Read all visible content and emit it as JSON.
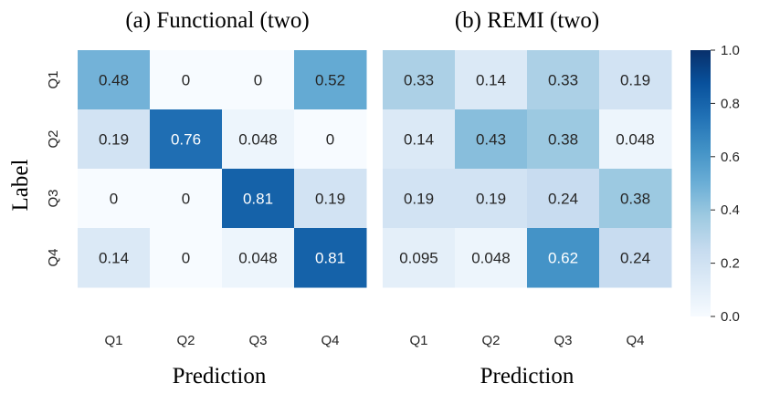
{
  "chart_data": [
    {
      "type": "heatmap",
      "title": "(a) Functional (two)",
      "xlabel": "Prediction",
      "ylabel": "Label",
      "x_categories": [
        "Q1",
        "Q2",
        "Q3",
        "Q4"
      ],
      "y_categories": [
        "Q1",
        "Q2",
        "Q3",
        "Q4"
      ],
      "values": [
        [
          0.48,
          0,
          0,
          0.52
        ],
        [
          0.19,
          0.76,
          0.048,
          0
        ],
        [
          0,
          0,
          0.81,
          0.19
        ],
        [
          0.14,
          0,
          0.048,
          0.81
        ]
      ],
      "labels": [
        [
          "0.48",
          "0",
          "0",
          "0.52"
        ],
        [
          "0.19",
          "0.76",
          "0.048",
          "0"
        ],
        [
          "0",
          "0",
          "0.81",
          "0.19"
        ],
        [
          "0.14",
          "0",
          "0.048",
          "0.81"
        ]
      ]
    },
    {
      "type": "heatmap",
      "title": "(b) REMI (two)",
      "xlabel": "Prediction",
      "ylabel": "",
      "x_categories": [
        "Q1",
        "Q2",
        "Q3",
        "Q4"
      ],
      "y_categories": [
        "Q1",
        "Q2",
        "Q3",
        "Q4"
      ],
      "values": [
        [
          0.33,
          0.14,
          0.33,
          0.19
        ],
        [
          0.14,
          0.43,
          0.38,
          0.048
        ],
        [
          0.19,
          0.19,
          0.24,
          0.38
        ],
        [
          0.095,
          0.048,
          0.62,
          0.24
        ]
      ],
      "labels": [
        [
          "0.33",
          "0.14",
          "0.33",
          "0.19"
        ],
        [
          "0.14",
          "0.43",
          "0.38",
          "0.048"
        ],
        [
          "0.19",
          "0.19",
          "0.24",
          "0.38"
        ],
        [
          "0.095",
          "0.048",
          "0.62",
          "0.24"
        ]
      ]
    }
  ],
  "colorbar": {
    "colormap": "Blues",
    "range": [
      0.0,
      1.0
    ],
    "tick_values": [
      0.0,
      0.2,
      0.4,
      0.6,
      0.8,
      1.0
    ],
    "tick_labels": [
      "0.0",
      "0.2",
      "0.4",
      "0.6",
      "0.8",
      "1.0"
    ]
  }
}
